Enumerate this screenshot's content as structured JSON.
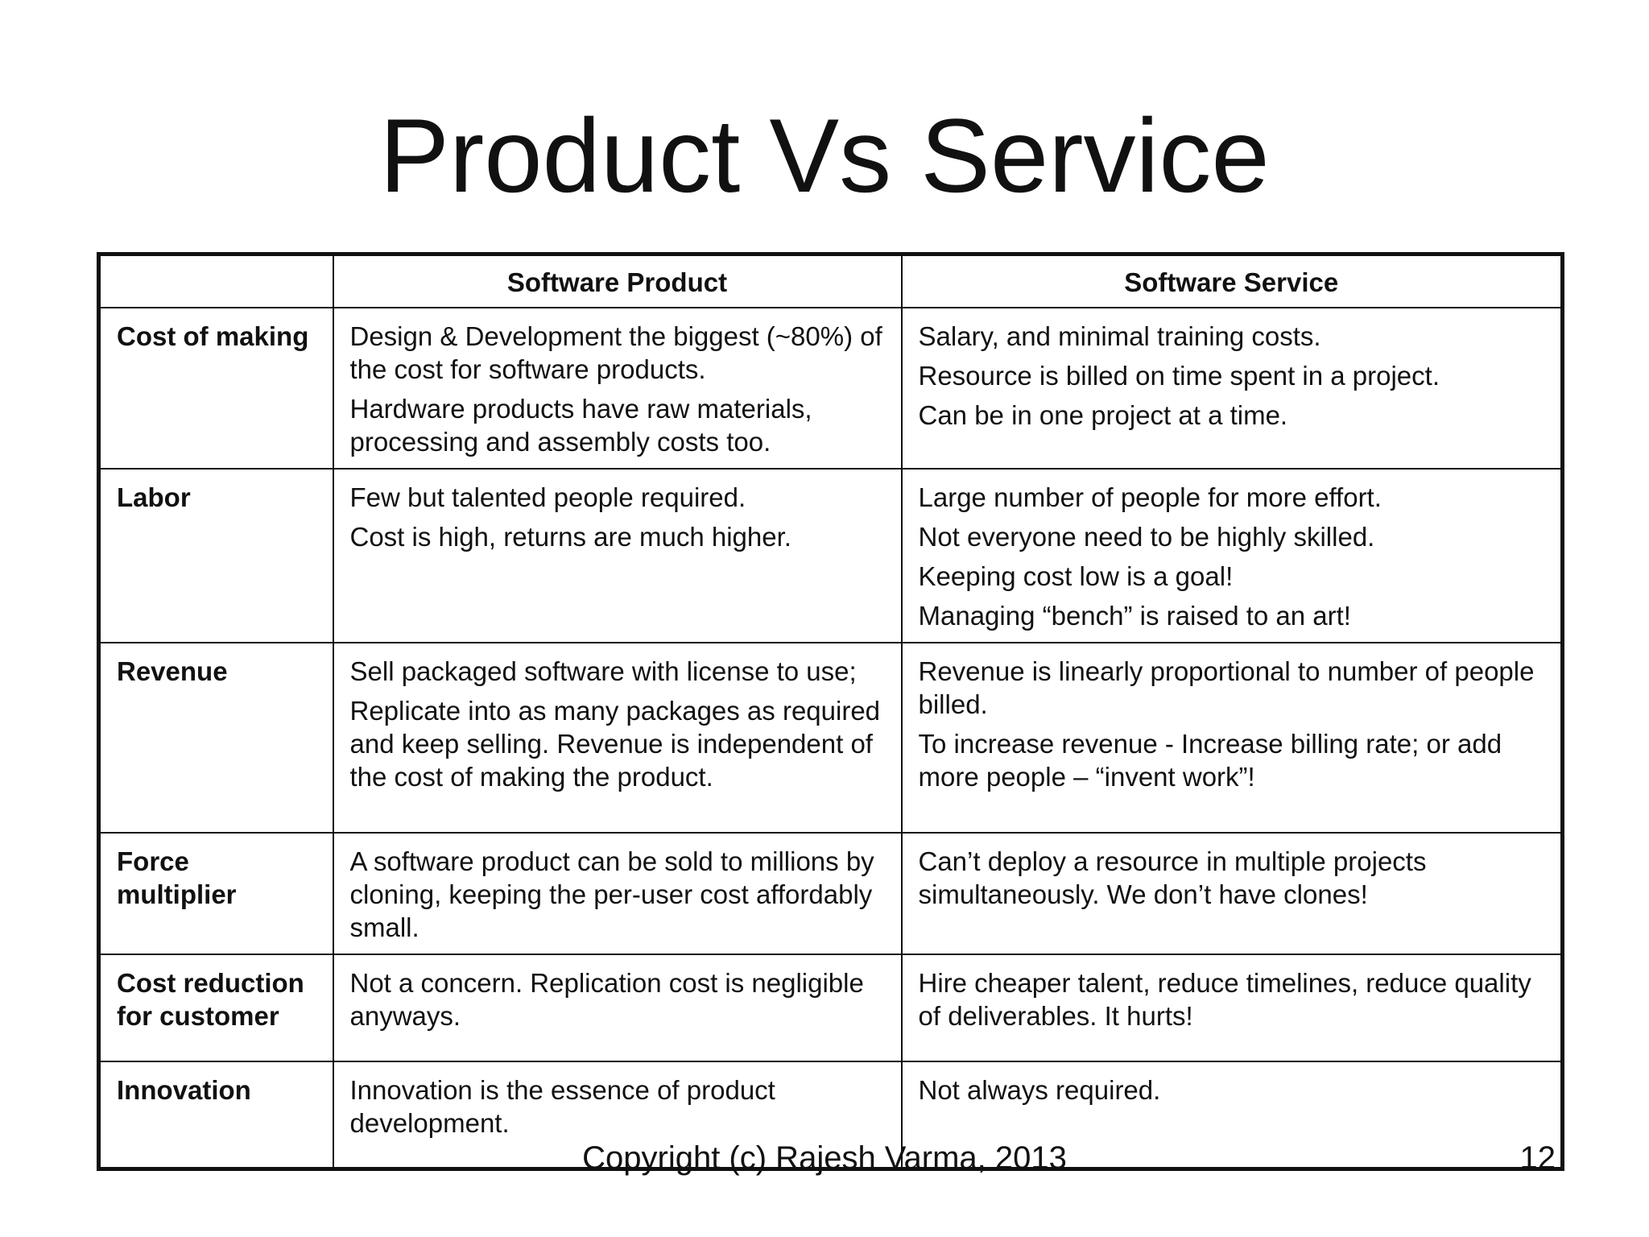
{
  "title": "Product Vs Service",
  "table": {
    "headers": [
      "",
      "Software Product",
      "Software Service"
    ],
    "rows": [
      {
        "label": "Cost of making",
        "product": [
          "Design & Development the biggest (~80%) of the cost for software products.",
          "Hardware products have raw materials, processing and assembly costs too."
        ],
        "service": [
          "Salary, and minimal training costs.",
          "Resource is billed on time spent in a project.",
          "Can be in one project at a time."
        ]
      },
      {
        "label": "Labor",
        "product": [
          "Few but talented people required.",
          "Cost is high, returns are much higher."
        ],
        "service": [
          "Large number of people for more effort.",
          "Not everyone need to be highly skilled.",
          "Keeping cost low is a goal!",
          "Managing “bench” is raised to an art!"
        ]
      },
      {
        "label": "Revenue",
        "product": [
          "Sell packaged software with license to use;",
          "Replicate into as many packages as required and keep selling. Revenue is independent of the cost of making the product."
        ],
        "service": [
          "Revenue is linearly proportional to number of people billed.",
          "To increase revenue - Increase billing rate; or add more people – “invent work”!"
        ]
      },
      {
        "label": "Force multiplier",
        "product": [
          "A software product can be sold to millions by cloning, keeping the per-user cost affordably small."
        ],
        "service": [
          "Can’t deploy a resource in multiple projects simultaneously. We don’t have clones!"
        ]
      },
      {
        "label": "Cost reduction for customer",
        "product": [
          "Not a concern. Replication cost is negligible anyways."
        ],
        "service": [
          "Hire cheaper talent, reduce timelines, reduce quality of deliverables. It hurts!"
        ]
      },
      {
        "label": "Innovation",
        "product": [
          "Innovation is the essence of product development."
        ],
        "service": [
          "Not always required."
        ]
      }
    ]
  },
  "footer": {
    "copyright": "Copyright (c) Rajesh Varma, 2013",
    "page_number": "12"
  }
}
